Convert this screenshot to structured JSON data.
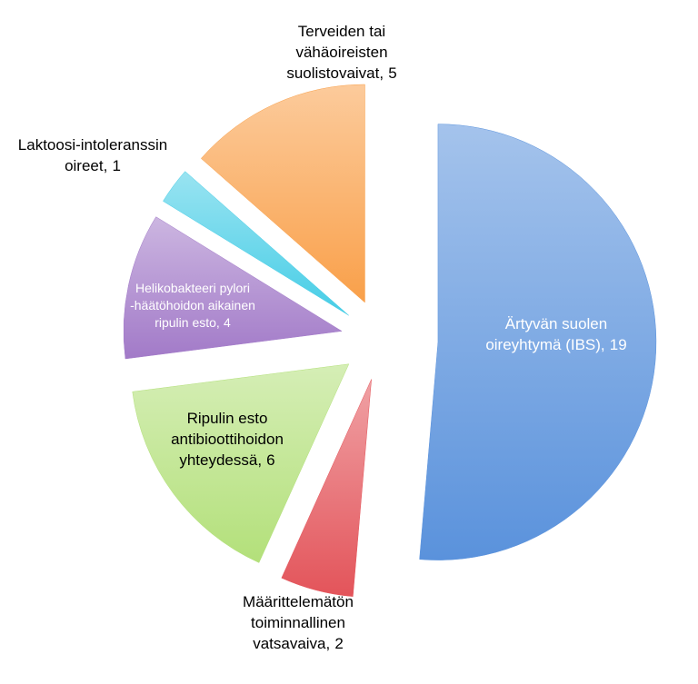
{
  "chart_data": {
    "type": "pie",
    "categories": [
      [
        "Ärtyvän suolen",
        "oireyhtymä (IBS),"
      ],
      [
        "Määrittelemätön",
        "toiminnallinen",
        "vatsavaiva,"
      ],
      [
        "Ripulin esto",
        "antibioottihoidon",
        "yhteydessä,"
      ],
      [
        "Helikobakteeri pylori",
        "-häätöhoidon aikainen",
        "ripulin esto,"
      ],
      [
        "Laktoosi-intoleranssin",
        "oireet,"
      ],
      [
        "Terveiden tai",
        "vähäoireisten",
        "suolistovaivat,"
      ]
    ],
    "values": [
      19,
      2,
      6,
      4,
      1,
      5
    ],
    "colors": [
      "#5a92dc",
      "#e3545a",
      "#b3e07a",
      "#a27ac8",
      "#46cde6",
      "#f9a04a"
    ]
  }
}
